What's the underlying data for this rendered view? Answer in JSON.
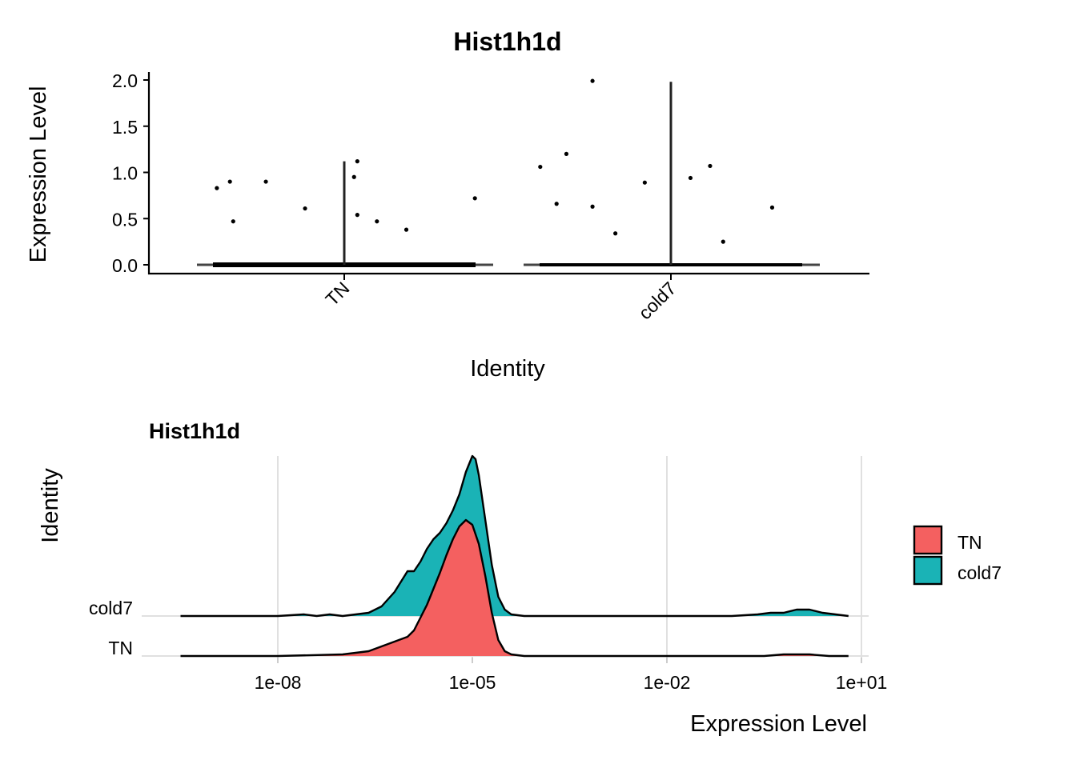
{
  "chart_data": [
    {
      "type": "scatter",
      "subtype": "violin-with-jitter",
      "title": "Hist1h1d",
      "xlabel": "Identity",
      "ylabel": "Expression Level",
      "categories": [
        "TN",
        "cold7"
      ],
      "ylim": [
        0,
        2.0
      ],
      "yticks": [
        "0.0",
        "0.5",
        "1.0",
        "1.5",
        "2.0"
      ],
      "ytick_values": [
        0,
        0.5,
        1.0,
        1.5,
        2.0
      ],
      "max_line": [
        1.12,
        1.98
      ],
      "points": [
        {
          "group": "TN",
          "offset": -0.39,
          "y": 0.83
        },
        {
          "group": "TN",
          "offset": -0.35,
          "y": 0.9
        },
        {
          "group": "TN",
          "offset": -0.34,
          "y": 0.47
        },
        {
          "group": "TN",
          "offset": -0.24,
          "y": 0.9
        },
        {
          "group": "TN",
          "offset": -0.12,
          "y": 0.61
        },
        {
          "group": "TN",
          "offset": 0.03,
          "y": 0.95
        },
        {
          "group": "TN",
          "offset": 0.04,
          "y": 1.12
        },
        {
          "group": "TN",
          "offset": 0.04,
          "y": 0.54
        },
        {
          "group": "TN",
          "offset": 0.1,
          "y": 0.47
        },
        {
          "group": "TN",
          "offset": 0.19,
          "y": 0.38
        },
        {
          "group": "TN",
          "offset": 0.4,
          "y": 0.72
        },
        {
          "group": "cold7",
          "offset": -0.4,
          "y": 1.06
        },
        {
          "group": "cold7",
          "offset": -0.35,
          "y": 0.66
        },
        {
          "group": "cold7",
          "offset": -0.32,
          "y": 1.2
        },
        {
          "group": "cold7",
          "offset": -0.24,
          "y": 1.99
        },
        {
          "group": "cold7",
          "offset": -0.24,
          "y": 0.63
        },
        {
          "group": "cold7",
          "offset": -0.17,
          "y": 0.34
        },
        {
          "group": "cold7",
          "offset": -0.08,
          "y": 0.89
        },
        {
          "group": "cold7",
          "offset": 0.06,
          "y": 0.94
        },
        {
          "group": "cold7",
          "offset": 0.12,
          "y": 1.07
        },
        {
          "group": "cold7",
          "offset": 0.16,
          "y": 0.25
        },
        {
          "group": "cold7",
          "offset": 0.31,
          "y": 0.62
        }
      ]
    },
    {
      "type": "area",
      "subtype": "ridgeline-density",
      "title": "Hist1h1d",
      "xlabel": "Expression Level",
      "ylabel": "Identity",
      "x_scale": "log10",
      "xlim_log10": [
        -10,
        1
      ],
      "xticks": [
        "1e-08",
        "1e-05",
        "1e-02",
        "1e+01"
      ],
      "xtick_log10": [
        -8,
        -5,
        -2,
        1
      ],
      "categories": [
        "TN",
        "cold7"
      ],
      "grid": true,
      "legend": {
        "position": "right",
        "entries": [
          {
            "label": "TN",
            "color": "#F8766D"
          },
          {
            "label": "cold7",
            "color": "#00BFC4"
          }
        ]
      },
      "series": [
        {
          "name": "cold7",
          "color": "#1AB3B6",
          "log10_x": [
            -9.5,
            -8.0,
            -7.6,
            -7.4,
            -7.2,
            -7.0,
            -6.8,
            -6.6,
            -6.4,
            -6.2,
            -6.0,
            -5.9,
            -5.8,
            -5.7,
            -5.6,
            -5.5,
            -5.4,
            -5.3,
            -5.2,
            -5.1,
            -5.0,
            -4.95,
            -4.9,
            -4.8,
            -4.7,
            -4.6,
            -4.5,
            -4.4,
            -4.2,
            -4.0,
            -3.0,
            -2.0,
            -1.0,
            -0.6,
            -0.4,
            -0.2,
            0.0,
            0.2,
            0.4,
            0.6,
            0.8
          ],
          "density": [
            0,
            0,
            0.01,
            0.0,
            0.01,
            0.0,
            0.01,
            0.02,
            0.06,
            0.15,
            0.28,
            0.28,
            0.34,
            0.42,
            0.48,
            0.52,
            0.58,
            0.66,
            0.76,
            0.9,
            1.0,
            0.98,
            0.88,
            0.6,
            0.32,
            0.12,
            0.04,
            0.01,
            0,
            0,
            0,
            0,
            0,
            0.01,
            0.02,
            0.02,
            0.04,
            0.04,
            0.02,
            0.01,
            0
          ]
        },
        {
          "name": "TN",
          "color": "#F46060",
          "log10_x": [
            -9.5,
            -8.0,
            -7.0,
            -6.6,
            -6.4,
            -6.2,
            -6.0,
            -5.9,
            -5.8,
            -5.7,
            -5.6,
            -5.5,
            -5.4,
            -5.3,
            -5.2,
            -5.1,
            -5.0,
            -4.9,
            -4.8,
            -4.7,
            -4.6,
            -4.5,
            -4.4,
            -4.2,
            -4.0,
            -3.0,
            -2.0,
            -1.0,
            -0.5,
            -0.2,
            0.0,
            0.2,
            0.5,
            0.8
          ],
          "density": [
            0,
            0,
            0.01,
            0.03,
            0.06,
            0.09,
            0.12,
            0.16,
            0.24,
            0.32,
            0.42,
            0.52,
            0.63,
            0.73,
            0.81,
            0.85,
            0.82,
            0.7,
            0.5,
            0.27,
            0.1,
            0.03,
            0.01,
            0,
            0,
            0,
            0,
            0,
            0.0,
            0.01,
            0.01,
            0.01,
            0.0,
            0
          ]
        }
      ]
    }
  ]
}
